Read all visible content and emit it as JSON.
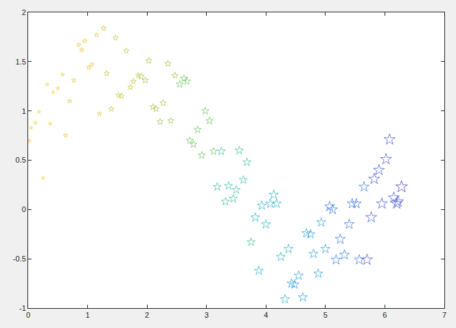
{
  "chart_data": {
    "type": "scatter",
    "marker": "star-open",
    "grid": false,
    "xlim": [
      0,
      7
    ],
    "xticks": [
      0,
      1,
      2,
      3,
      4,
      5,
      6,
      7
    ],
    "ylim": [
      -1,
      2
    ],
    "yticks": [
      -1,
      -0.5,
      0,
      0.5,
      1,
      1.5,
      2
    ],
    "x": [
      0.02,
      0.05,
      0.12,
      0.18,
      0.25,
      0.32,
      0.37,
      0.42,
      0.5,
      0.58,
      0.63,
      0.7,
      0.77,
      0.85,
      0.9,
      0.95,
      1.02,
      1.07,
      1.15,
      1.2,
      1.27,
      1.32,
      1.4,
      1.47,
      1.52,
      1.57,
      1.65,
      1.72,
      1.77,
      1.85,
      1.9,
      1.97,
      2.03,
      2.1,
      2.15,
      2.22,
      2.27,
      2.35,
      2.4,
      2.47,
      2.55,
      2.62,
      2.67,
      2.72,
      2.78,
      2.85,
      2.92,
      2.98,
      3.05,
      3.12,
      3.18,
      3.25,
      3.32,
      3.37,
      3.45,
      3.5,
      3.55,
      3.62,
      3.68,
      3.75,
      3.82,
      3.88,
      3.93,
      4.0,
      4.07,
      4.13,
      4.18,
      4.25,
      4.32,
      4.38,
      4.43,
      4.48,
      4.55,
      4.62,
      4.68,
      4.75,
      4.8,
      4.88,
      4.93,
      5.0,
      5.07,
      5.12,
      5.18,
      5.25,
      5.32,
      5.4,
      5.45,
      5.52,
      5.57,
      5.65,
      5.7,
      5.77,
      5.82,
      5.9,
      5.95,
      6.02,
      6.08,
      6.15,
      6.2,
      6.22,
      6.28
    ],
    "values": [
      0.7,
      0.83,
      0.88,
      0.99,
      0.32,
      1.27,
      0.87,
      1.19,
      1.23,
      1.37,
      0.75,
      1.1,
      1.31,
      1.67,
      1.62,
      1.71,
      1.44,
      1.47,
      1.77,
      0.97,
      1.84,
      1.38,
      1.02,
      1.74,
      1.16,
      1.15,
      1.61,
      1.24,
      1.3,
      1.36,
      1.35,
      1.31,
      1.51,
      1.04,
      1.02,
      0.89,
      1.08,
      1.48,
      0.9,
      1.36,
      1.27,
      1.33,
      1.3,
      0.7,
      0.66,
      0.81,
      0.55,
      1.0,
      0.9,
      0.59,
      0.23,
      0.59,
      0.08,
      0.24,
      0.11,
      0.2,
      0.6,
      0.3,
      0.48,
      -0.33,
      -0.08,
      -0.62,
      0.04,
      -0.15,
      0.06,
      0.15,
      0.06,
      -0.48,
      -0.91,
      -0.4,
      -0.75,
      -0.76,
      -0.67,
      -0.89,
      -0.24,
      -0.25,
      -0.45,
      -0.65,
      -0.13,
      -0.4,
      0.03,
      0.0,
      -0.51,
      -0.3,
      -0.46,
      -0.15,
      0.06,
      0.06,
      -0.51,
      0.23,
      -0.51,
      -0.08,
      0.31,
      0.4,
      0.06,
      0.51,
      0.71,
      0.12,
      0.06,
      0.08,
      0.23
    ],
    "sizes": [
      4,
      4,
      4,
      4,
      4,
      4,
      4,
      4,
      4,
      4,
      5,
      5,
      5,
      5,
      5,
      5,
      5,
      5,
      5,
      5,
      6,
      6,
      6,
      6,
      6,
      6,
      6,
      6,
      6,
      6,
      7,
      7,
      7,
      7,
      7,
      7,
      7,
      7,
      7,
      7,
      8,
      8,
      8,
      8,
      8,
      8,
      8,
      8,
      8,
      8,
      9,
      9,
      9,
      9,
      9,
      9,
      9,
      9,
      9,
      9,
      10,
      10,
      10,
      10,
      10,
      10,
      10,
      10,
      10,
      10,
      10,
      10,
      10,
      10,
      10,
      10,
      10,
      10,
      10,
      10,
      11,
      11,
      11,
      11,
      11,
      11,
      11,
      11,
      11,
      11,
      12,
      12,
      12,
      12,
      12,
      12,
      12,
      12,
      12,
      12,
      13
    ],
    "colors": [
      "#f2cc24",
      "#f2cc24",
      "#f2cc24",
      "#f2cc24",
      "#f2cc24",
      "#f2cc24",
      "#f2cc24",
      "#f2cc24",
      "#f2cc24",
      "#f2cc24",
      "#e6c42c",
      "#e6c42c",
      "#e6c42c",
      "#e6c42c",
      "#e6c42c",
      "#e6c42c",
      "#e6c42c",
      "#e6c42c",
      "#e6c42c",
      "#e6c42c",
      "#c9c236",
      "#c9c236",
      "#c9c236",
      "#c9c236",
      "#c9c236",
      "#c9c236",
      "#c9c236",
      "#c9c236",
      "#c9c236",
      "#c9c236",
      "#9fc446",
      "#9fc446",
      "#9fc446",
      "#9fc446",
      "#9fc446",
      "#9fc446",
      "#9fc446",
      "#9fc446",
      "#9fc446",
      "#9fc446",
      "#6cc35e",
      "#6cc35e",
      "#6cc35e",
      "#6cc35e",
      "#6cc35e",
      "#6cc35e",
      "#6cc35e",
      "#6cc35e",
      "#6cc35e",
      "#6cc35e",
      "#34bda0",
      "#34bda0",
      "#34bda0",
      "#34bda0",
      "#34bda0",
      "#34bda0",
      "#34bda0",
      "#34bda0",
      "#34bda0",
      "#34bda0",
      "#1eb0cc",
      "#1eb0cc",
      "#1eb0cc",
      "#1eb0cc",
      "#1eb0cc",
      "#1eb0cc",
      "#1eb0cc",
      "#1eb0cc",
      "#1eb0cc",
      "#1eb0cc",
      "#229adf",
      "#229adf",
      "#229adf",
      "#229adf",
      "#229adf",
      "#229adf",
      "#229adf",
      "#229adf",
      "#229adf",
      "#229adf",
      "#2c72e6",
      "#2c72e6",
      "#2c72e6",
      "#2c72e6",
      "#2c72e6",
      "#2c72e6",
      "#2c72e6",
      "#2c72e6",
      "#2c72e6",
      "#2c72e6",
      "#3a4ad2",
      "#3a4ad2",
      "#3a4ad2",
      "#3a4ad2",
      "#3a4ad2",
      "#3a4ad2",
      "#3a4ad2",
      "#3a4ad2",
      "#3a4ad2",
      "#3a4ad2",
      "#3b2fa6"
    ]
  }
}
